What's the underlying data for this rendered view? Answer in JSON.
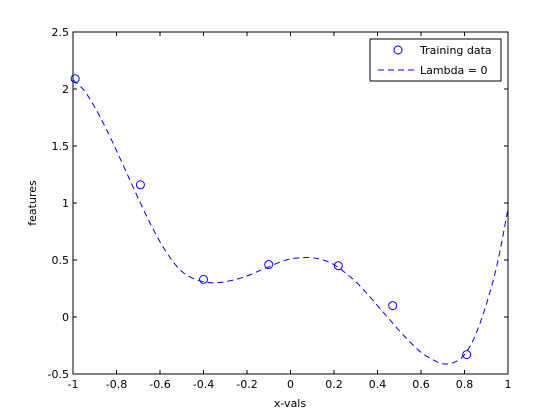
{
  "chart_data": {
    "type": "line",
    "title": "",
    "xlabel": "x-vals",
    "ylabel": "features",
    "xlim": [
      -1,
      1
    ],
    "ylim": [
      -0.5,
      2.5
    ],
    "grid": false,
    "legend_position": "top-right",
    "xticks": [
      -1,
      -0.8,
      -0.6,
      -0.4,
      -0.2,
      0,
      0.2,
      0.4,
      0.6,
      0.8,
      1
    ],
    "xtick_labels": [
      "-1",
      "-0.8",
      "-0.6",
      "-0.4",
      "-0.2",
      "0",
      "0.2",
      "0.4",
      "0.6",
      "0.8",
      "1"
    ],
    "yticks": [
      -0.5,
      0,
      0.5,
      1,
      1.5,
      2,
      2.5
    ],
    "ytick_labels": [
      "-0.5",
      "0",
      "0.5",
      "1",
      "1.5",
      "2",
      "2.5"
    ],
    "series": [
      {
        "name": "Training data",
        "kind": "scatter",
        "marker": "circle",
        "color": "#0000ff",
        "x": [
          -0.99,
          -0.69,
          -0.4,
          -0.1,
          0.22,
          0.47,
          0.81
        ],
        "y": [
          2.09,
          1.16,
          0.33,
          0.46,
          0.45,
          0.1,
          -0.33
        ]
      },
      {
        "name": "Lambda = 0",
        "kind": "line",
        "style": "dashed",
        "color": "#0000ff",
        "x": [
          -1.0,
          -0.95,
          -0.9,
          -0.85,
          -0.8,
          -0.75,
          -0.7,
          -0.65,
          -0.6,
          -0.55,
          -0.5,
          -0.45,
          -0.4,
          -0.35,
          -0.3,
          -0.25,
          -0.2,
          -0.15,
          -0.1,
          -0.05,
          0.0,
          0.05,
          0.1,
          0.15,
          0.2,
          0.25,
          0.3,
          0.35,
          0.4,
          0.45,
          0.5,
          0.55,
          0.6,
          0.65,
          0.7,
          0.75,
          0.8,
          0.85,
          0.9,
          0.95,
          1.0
        ],
        "y": [
          2.08,
          1.99,
          1.84,
          1.66,
          1.46,
          1.25,
          1.04,
          0.84,
          0.66,
          0.51,
          0.4,
          0.34,
          0.31,
          0.3,
          0.31,
          0.33,
          0.36,
          0.4,
          0.44,
          0.48,
          0.51,
          0.52,
          0.52,
          0.5,
          0.46,
          0.39,
          0.31,
          0.21,
          0.1,
          -0.01,
          -0.12,
          -0.22,
          -0.31,
          -0.37,
          -0.41,
          -0.4,
          -0.33,
          -0.16,
          0.11,
          0.46,
          0.95
        ]
      }
    ]
  },
  "legend": {
    "items": [
      {
        "label": "Training data",
        "symbol": "circle"
      },
      {
        "label": "Lambda = 0",
        "symbol": "dashed-line"
      }
    ]
  },
  "colors": {
    "series": "#0000ff",
    "axes": "#000000",
    "background": "#ffffff"
  }
}
